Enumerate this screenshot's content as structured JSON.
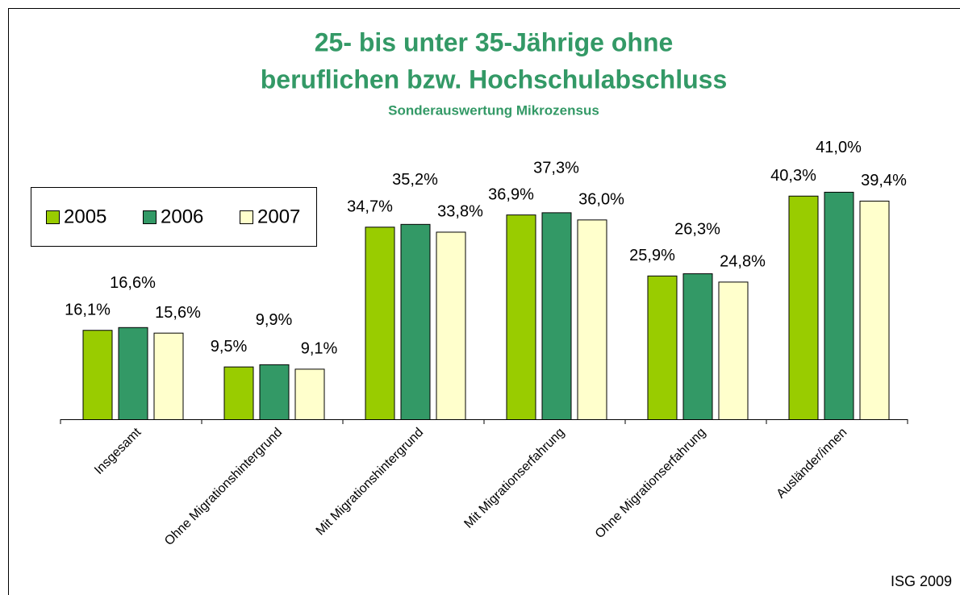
{
  "chart_data": {
    "type": "bar",
    "title": [
      "25- bis unter 35-Jährige ohne",
      "beruflichen bzw. Hochschulabschluss"
    ],
    "subtitle": "Sonderauswertung Mikrozensus",
    "categories": [
      "Insgesamt",
      "Ohne Migrationshintergrund",
      "Mit Migrationshintergrund",
      "Mit Migrationserfahrung",
      "Ohne Migrationserfahrung",
      "Ausländer/innen"
    ],
    "series": [
      {
        "name": "2005",
        "color": "#99cc00",
        "values": [
          16.1,
          9.5,
          34.7,
          36.9,
          25.9,
          40.3
        ],
        "value_labels": [
          "16,1%",
          "9,5%",
          "34,7%",
          "36,9%",
          "25,9%",
          "40,3%"
        ]
      },
      {
        "name": "2006",
        "color": "#339966",
        "values": [
          16.6,
          9.9,
          35.2,
          37.3,
          26.3,
          41.0
        ],
        "value_labels": [
          "16,6%",
          "9,9%",
          "35,2%",
          "37,3%",
          "26,3%",
          "41,0%"
        ]
      },
      {
        "name": "2007",
        "color": "#ffffcc",
        "values": [
          15.6,
          9.1,
          33.8,
          36.0,
          24.8,
          39.4
        ],
        "value_labels": [
          "15,6%",
          "9,1%",
          "33,8%",
          "36,0%",
          "24,8%",
          "39,4%"
        ]
      }
    ],
    "legend": "upper left",
    "source": "ISG 2009"
  }
}
